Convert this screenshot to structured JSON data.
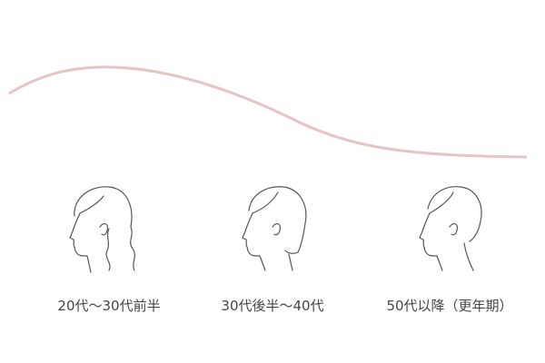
{
  "stages": [
    {
      "label": "20代〜30代前半"
    },
    {
      "label": "30代後半〜40代"
    },
    {
      "label": "50代以降（更年期）"
    }
  ]
}
